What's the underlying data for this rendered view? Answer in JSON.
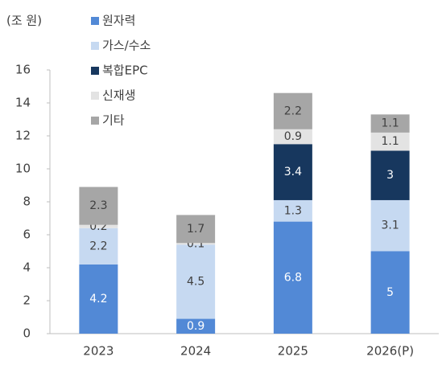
{
  "chart_data": {
    "type": "stacked_bar",
    "y_unit_label": "(조 원)",
    "categories": [
      "2023",
      "2024",
      "2025",
      "2026(P)"
    ],
    "series": [
      {
        "name": "원자력",
        "color": "#5289d6",
        "label_color": "#ffffff",
        "values": [
          4.2,
          0.9,
          6.8,
          5
        ]
      },
      {
        "name": "가스/수소",
        "color": "#c6d9f1",
        "label_color": "#404040",
        "values": [
          2.2,
          4.5,
          1.3,
          3.1
        ]
      },
      {
        "name": "복합EPC",
        "color": "#17375e",
        "label_color": "#ffffff",
        "values": [
          null,
          null,
          3.4,
          3
        ]
      },
      {
        "name": "신재생",
        "color": "#e3e3e3",
        "label_color": "#404040",
        "values": [
          0.2,
          0.1,
          0.9,
          1.1
        ]
      },
      {
        "name": "기타",
        "color": "#a6a6a6",
        "label_color": "#404040",
        "values": [
          2.3,
          1.7,
          2.2,
          1.1
        ]
      }
    ],
    "ylim": [
      0,
      16
    ],
    "yticks": [
      0,
      2,
      4,
      6,
      8,
      10,
      12,
      14,
      16
    ],
    "grid": false
  }
}
